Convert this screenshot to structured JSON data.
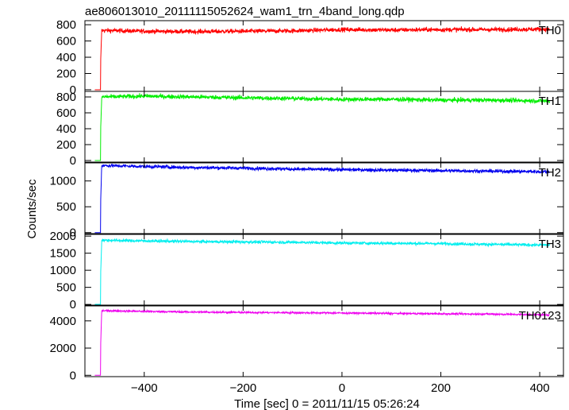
{
  "chart_data": {
    "type": "line",
    "title": "ae806013010_20111115052624_wam1_trn_4band_long.qdp",
    "xlabel": "Time [sec] 0 = 2011/11/15 05:26:24",
    "ylabel": "Counts/sec",
    "xlim": [
      -520,
      448
    ],
    "xticks": [
      -400,
      -200,
      0,
      200,
      400
    ],
    "trigger_time": -488,
    "data_start": -500,
    "data_end": 420,
    "panels": [
      {
        "name": "TH0",
        "color": "#ff0000",
        "ylim": [
          -20,
          850
        ],
        "yticks": [
          0,
          200,
          400,
          600,
          800
        ],
        "x": [
          -500,
          -490,
          -486,
          -400,
          -300,
          -200,
          -100,
          0,
          100,
          200,
          300,
          400,
          420
        ],
        "values": [
          0,
          0,
          730,
          720,
          715,
          720,
          725,
          740,
          735,
          740,
          740,
          745,
          740
        ],
        "noise": 45
      },
      {
        "name": "TH1",
        "color": "#00ee00",
        "ylim": [
          -20,
          870
        ],
        "yticks": [
          0,
          200,
          400,
          600,
          800
        ],
        "x": [
          -500,
          -490,
          -486,
          -400,
          -300,
          -200,
          -100,
          0,
          100,
          200,
          300,
          400,
          420
        ],
        "values": [
          0,
          0,
          800,
          810,
          800,
          790,
          780,
          770,
          770,
          760,
          760,
          750,
          750
        ],
        "noise": 45
      },
      {
        "name": "TH2",
        "color": "#0000ee",
        "ylim": [
          -20,
          1350
        ],
        "yticks": [
          0,
          500,
          1000
        ],
        "x": [
          -500,
          -490,
          -486,
          -400,
          -300,
          -200,
          -100,
          0,
          100,
          200,
          300,
          400,
          420
        ],
        "values": [
          0,
          0,
          1300,
          1280,
          1260,
          1250,
          1230,
          1220,
          1210,
          1200,
          1190,
          1180,
          1180
        ],
        "noise": 55
      },
      {
        "name": "TH3",
        "color": "#00eeee",
        "ylim": [
          -20,
          2050
        ],
        "yticks": [
          0,
          500,
          1000,
          1500,
          2000
        ],
        "x": [
          -500,
          -490,
          -486,
          -400,
          -300,
          -200,
          -100,
          0,
          100,
          200,
          300,
          400,
          420
        ],
        "values": [
          0,
          0,
          1880,
          1860,
          1840,
          1830,
          1820,
          1800,
          1790,
          1780,
          1760,
          1740,
          1740
        ],
        "noise": 70
      },
      {
        "name": "TH0123",
        "color": "#ee00ee",
        "ylim": [
          -100,
          5100
        ],
        "yticks": [
          0,
          2000,
          4000
        ],
        "x": [
          -500,
          -490,
          -486,
          -400,
          -300,
          -200,
          -100,
          0,
          100,
          200,
          300,
          400,
          420
        ],
        "values": [
          0,
          0,
          4750,
          4700,
          4650,
          4620,
          4600,
          4580,
          4550,
          4520,
          4500,
          4450,
          4450
        ],
        "noise": 110
      }
    ]
  }
}
